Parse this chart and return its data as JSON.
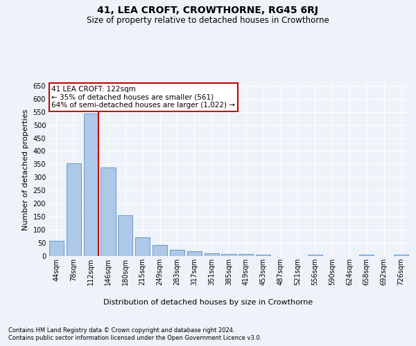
{
  "title": "41, LEA CROFT, CROWTHORNE, RG45 6RJ",
  "subtitle": "Size of property relative to detached houses in Crowthorne",
  "xlabel": "Distribution of detached houses by size in Crowthorne",
  "ylabel": "Number of detached properties",
  "categories": [
    "44sqm",
    "78sqm",
    "112sqm",
    "146sqm",
    "180sqm",
    "215sqm",
    "249sqm",
    "283sqm",
    "317sqm",
    "351sqm",
    "385sqm",
    "419sqm",
    "453sqm",
    "487sqm",
    "521sqm",
    "556sqm",
    "590sqm",
    "624sqm",
    "658sqm",
    "692sqm",
    "726sqm"
  ],
  "values": [
    57,
    355,
    543,
    338,
    155,
    70,
    42,
    25,
    18,
    10,
    8,
    8,
    5,
    0,
    0,
    5,
    0,
    0,
    5,
    0,
    5
  ],
  "bar_color": "#aec8e8",
  "bar_edge_color": "#5a8fc4",
  "vline_x_index": 2,
  "vline_color": "#cc0000",
  "annotation_line1": "41 LEA CROFT: 122sqm",
  "annotation_line2": "← 35% of detached houses are smaller (561)",
  "annotation_line3": "64% of semi-detached houses are larger (1,022) →",
  "annotation_box_color": "#ffffff",
  "annotation_box_edge_color": "#cc0000",
  "ylim": [
    0,
    660
  ],
  "yticks": [
    0,
    50,
    100,
    150,
    200,
    250,
    300,
    350,
    400,
    450,
    500,
    550,
    600,
    650
  ],
  "footer_line1": "Contains HM Land Registry data © Crown copyright and database right 2024.",
  "footer_line2": "Contains public sector information licensed under the Open Government Licence v3.0.",
  "background_color": "#eef2f9",
  "plot_background_color": "#eef2f9",
  "title_fontsize": 10,
  "subtitle_fontsize": 8.5,
  "ylabel_fontsize": 8,
  "xlabel_fontsize": 8,
  "tick_fontsize": 7,
  "annotation_fontsize": 7.5,
  "footer_fontsize": 6
}
